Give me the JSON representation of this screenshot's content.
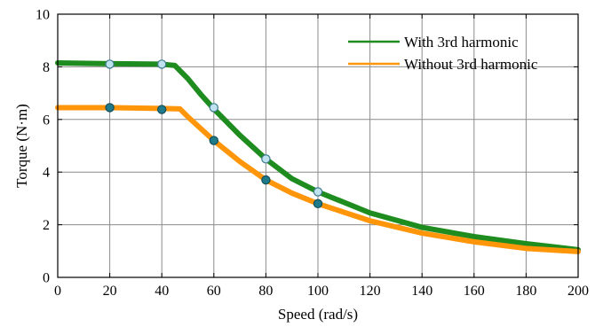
{
  "chart_data": {
    "type": "line",
    "xlabel": "Speed (rad/s)",
    "ylabel": "Torque (N·m)",
    "xlim": [
      0,
      200
    ],
    "ylim": [
      0,
      10
    ],
    "xticks": [
      "0",
      "20",
      "40",
      "60",
      "80",
      "100",
      "120",
      "140",
      "160",
      "180",
      "200"
    ],
    "yticks": [
      "0",
      "2",
      "4",
      "6",
      "8",
      "10"
    ],
    "grid": true,
    "legend_position": "top-right",
    "series": [
      {
        "name": "With 3rd harmonic",
        "color": "#1e8c1e",
        "x": [
          0,
          20,
          40,
          45,
          50,
          55,
          60,
          70,
          80,
          90,
          100,
          120,
          140,
          160,
          180,
          200
        ],
        "y": [
          8.15,
          8.12,
          8.1,
          8.05,
          7.55,
          6.95,
          6.4,
          5.4,
          4.5,
          3.75,
          3.25,
          2.45,
          1.9,
          1.55,
          1.28,
          1.05
        ],
        "markers": {
          "x": [
            20,
            40,
            60,
            80,
            100
          ],
          "y": [
            8.1,
            8.1,
            6.45,
            4.5,
            3.25
          ],
          "fill": "#bfe3ee",
          "stroke": "#3c7a8c"
        }
      },
      {
        "name": "Without 3rd harmonic",
        "color": "#ff960a",
        "x": [
          0,
          20,
          40,
          47,
          50,
          55,
          60,
          70,
          80,
          90,
          100,
          120,
          140,
          160,
          180,
          200
        ],
        "y": [
          6.45,
          6.45,
          6.42,
          6.4,
          6.1,
          5.65,
          5.2,
          4.4,
          3.7,
          3.2,
          2.8,
          2.15,
          1.68,
          1.35,
          1.1,
          0.98
        ],
        "markers": {
          "x": [
            20,
            40,
            60,
            80,
            100
          ],
          "y": [
            6.45,
            6.38,
            5.2,
            3.7,
            2.8
          ],
          "fill": "#1f7a8a",
          "stroke": "#134e58"
        }
      }
    ]
  }
}
